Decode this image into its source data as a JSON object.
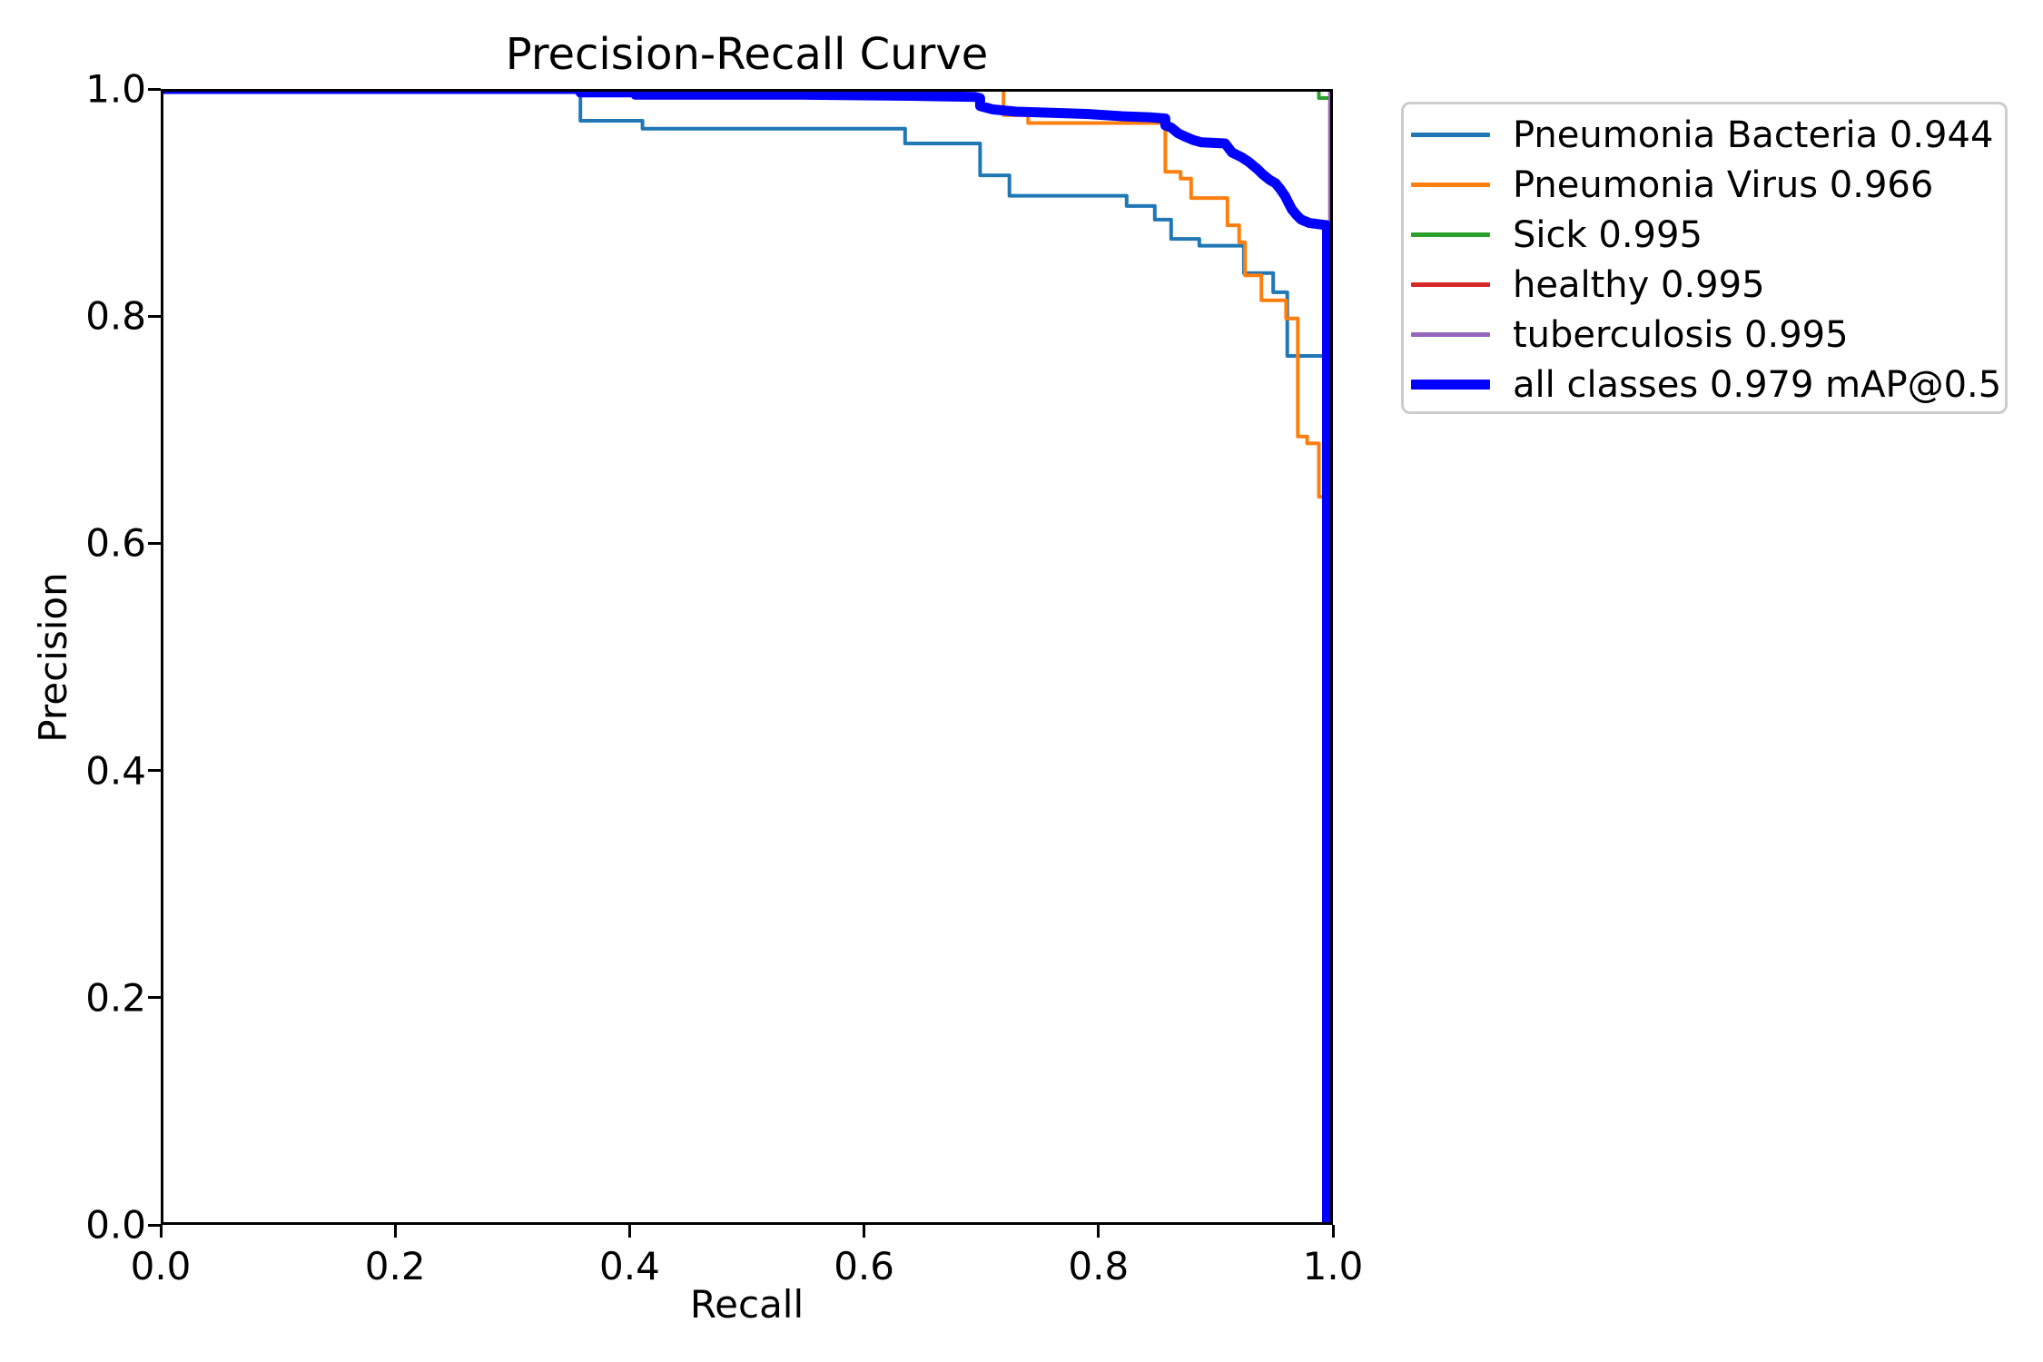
{
  "figure": {
    "background_color": "#ffffff",
    "text_color": "#000000",
    "legend_border_color": "#cccccc"
  },
  "chart_data": {
    "type": "line",
    "title": "Precision-Recall Curve",
    "xlabel": "Recall",
    "ylabel": "Precision",
    "xlim": [
      0.0,
      1.0
    ],
    "ylim": [
      0.0,
      1.0
    ],
    "x_ticks": [
      "0.0",
      "0.2",
      "0.4",
      "0.6",
      "0.8",
      "1.0"
    ],
    "y_ticks": [
      "0.0",
      "0.2",
      "0.4",
      "0.6",
      "0.8",
      "1.0"
    ],
    "grid": false,
    "legend_position": "outside-upper-right",
    "series": [
      {
        "label": "Pneumonia Bacteria 0.944",
        "ap": 0.944,
        "color": "#1f77b4",
        "line_width": 4,
        "points": [
          [
            0,
            1
          ],
          [
            0.358,
            1
          ],
          [
            0.358,
            0.972
          ],
          [
            0.411,
            0.972
          ],
          [
            0.411,
            0.965
          ],
          [
            0.635,
            0.965
          ],
          [
            0.635,
            0.952
          ],
          [
            0.699,
            0.952
          ],
          [
            0.699,
            0.924
          ],
          [
            0.724,
            0.924
          ],
          [
            0.724,
            0.906
          ],
          [
            0.824,
            0.906
          ],
          [
            0.824,
            0.897
          ],
          [
            0.848,
            0.897
          ],
          [
            0.848,
            0.885
          ],
          [
            0.862,
            0.885
          ],
          [
            0.862,
            0.868
          ],
          [
            0.886,
            0.868
          ],
          [
            0.886,
            0.862
          ],
          [
            0.924,
            0.862
          ],
          [
            0.924,
            0.838
          ],
          [
            0.949,
            0.838
          ],
          [
            0.949,
            0.821
          ],
          [
            0.961,
            0.821
          ],
          [
            0.961,
            0.765
          ],
          [
            0.995,
            0.765
          ]
        ]
      },
      {
        "label": "Pneumonia Virus 0.966",
        "ap": 0.966,
        "color": "#ff7f0e",
        "line_width": 4,
        "points": [
          [
            0,
            1
          ],
          [
            0.719,
            1
          ],
          [
            0.719,
            0.977
          ],
          [
            0.74,
            0.977
          ],
          [
            0.74,
            0.97
          ],
          [
            0.857,
            0.97
          ],
          [
            0.857,
            0.927
          ],
          [
            0.87,
            0.927
          ],
          [
            0.87,
            0.921
          ],
          [
            0.879,
            0.921
          ],
          [
            0.879,
            0.904
          ],
          [
            0.91,
            0.904
          ],
          [
            0.91,
            0.88
          ],
          [
            0.92,
            0.88
          ],
          [
            0.92,
            0.865
          ],
          [
            0.925,
            0.865
          ],
          [
            0.925,
            0.836
          ],
          [
            0.939,
            0.836
          ],
          [
            0.939,
            0.814
          ],
          [
            0.96,
            0.814
          ],
          [
            0.96,
            0.798
          ],
          [
            0.97,
            0.798
          ],
          [
            0.97,
            0.694
          ],
          [
            0.978,
            0.694
          ],
          [
            0.978,
            0.688
          ],
          [
            0.988,
            0.688
          ],
          [
            0.988,
            0.641
          ],
          [
            0.995,
            0.641
          ]
        ]
      },
      {
        "label": "Sick 0.995",
        "ap": 0.995,
        "color": "#2ca02c",
        "line_width": 4,
        "points": [
          [
            0,
            1
          ],
          [
            0.988,
            1
          ],
          [
            0.988,
            0.992
          ],
          [
            0.998,
            0.992
          ]
        ]
      },
      {
        "label": "healthy 0.995",
        "ap": 0.995,
        "color": "#d62728",
        "line_width": 4,
        "points": [
          [
            0,
            1
          ],
          [
            0.9975,
            1
          ],
          [
            0.9975,
            0
          ]
        ]
      },
      {
        "label": "tuberculosis 0.995",
        "ap": 0.995,
        "color": "#9467bd",
        "line_width": 5,
        "points": [
          [
            0,
            1
          ],
          [
            0.998,
            1
          ],
          [
            0.998,
            0
          ]
        ]
      },
      {
        "label": "all classes 0.979 mAP@0.5",
        "ap": 0.979,
        "color": "#0000ff",
        "line_width": 11,
        "points": [
          [
            0,
            1
          ],
          [
            0.358,
            1
          ],
          [
            0.358,
            0.997
          ],
          [
            0.405,
            0.997
          ],
          [
            0.405,
            0.995
          ],
          [
            0.55,
            0.995
          ],
          [
            0.64,
            0.994
          ],
          [
            0.695,
            0.993
          ],
          [
            0.699,
            0.992
          ],
          [
            0.699,
            0.985
          ],
          [
            0.71,
            0.982
          ],
          [
            0.73,
            0.98
          ],
          [
            0.79,
            0.978
          ],
          [
            0.82,
            0.976
          ],
          [
            0.845,
            0.975
          ],
          [
            0.857,
            0.974
          ],
          [
            0.857,
            0.968
          ],
          [
            0.862,
            0.966
          ],
          [
            0.868,
            0.961
          ],
          [
            0.874,
            0.958
          ],
          [
            0.881,
            0.955
          ],
          [
            0.888,
            0.953
          ],
          [
            0.908,
            0.952
          ],
          [
            0.914,
            0.944
          ],
          [
            0.922,
            0.94
          ],
          [
            0.928,
            0.936
          ],
          [
            0.935,
            0.93
          ],
          [
            0.94,
            0.925
          ],
          [
            0.946,
            0.92
          ],
          [
            0.951,
            0.917
          ],
          [
            0.955,
            0.912
          ],
          [
            0.959,
            0.906
          ],
          [
            0.962,
            0.9
          ],
          [
            0.965,
            0.894
          ],
          [
            0.969,
            0.889
          ],
          [
            0.973,
            0.885
          ],
          [
            0.98,
            0.882
          ],
          [
            0.988,
            0.881
          ],
          [
            0.995,
            0.88
          ],
          [
            0.995,
            0
          ]
        ]
      }
    ]
  }
}
